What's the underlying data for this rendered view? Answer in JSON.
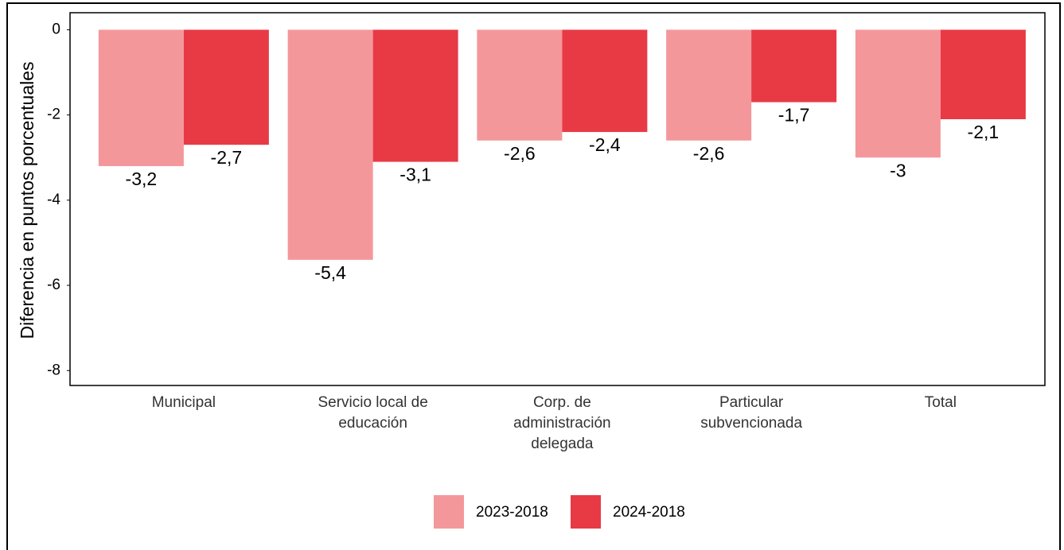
{
  "chart_data": {
    "type": "bar",
    "y_axis_label": "Diferencia en puntos porcentuales",
    "categories": [
      "Municipal",
      "Servicio local de\neducación",
      "Corp. de\nadministración\ndelegada",
      "Particular\nsubvencionada",
      "Total"
    ],
    "series": [
      {
        "name": "2023-2018",
        "color": "#f4979b",
        "values": [
          -3.2,
          -5.4,
          -2.6,
          -2.6,
          -3
        ],
        "value_labels": [
          "-3,2",
          "-5,4",
          "-2,6",
          "-2,6",
          "-3"
        ]
      },
      {
        "name": "2024-2018",
        "color": "#e83a45",
        "values": [
          -2.7,
          -3.1,
          -2.4,
          -1.7,
          -2.1
        ],
        "value_labels": [
          "-2,7",
          "-3,1",
          "-2,4",
          "-1,7",
          "-2,1"
        ]
      }
    ],
    "ylim": [
      -8.35,
      0.4
    ],
    "yticks": [
      0,
      -2,
      -4,
      -6,
      -8
    ],
    "legend": "bottom"
  }
}
